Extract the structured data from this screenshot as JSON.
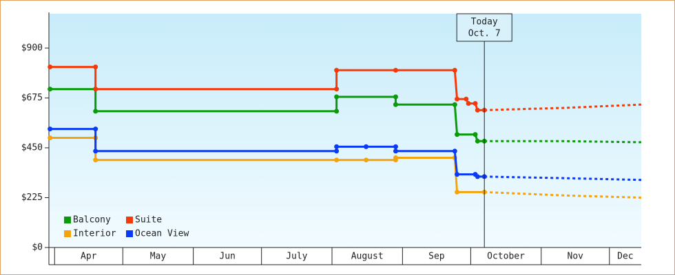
{
  "chart_data": {
    "type": "line",
    "xlim": [
      88.5,
      349
    ],
    "xticks": [
      {
        "value": 91,
        "label": "Apr"
      },
      {
        "value": 121,
        "label": "May"
      },
      {
        "value": 152,
        "label": "Jun"
      },
      {
        "value": 182,
        "label": "July"
      },
      {
        "value": 213,
        "label": "August"
      },
      {
        "value": 244,
        "label": "Sep"
      },
      {
        "value": 274,
        "label": "October"
      },
      {
        "value": 305,
        "label": "Nov"
      },
      {
        "value": 335,
        "label": "Dec"
      }
    ],
    "ylim": [
      0,
      1055
    ],
    "yticks": [
      {
        "value": 0,
        "label": "$0"
      },
      {
        "value": 225,
        "label": "$225"
      },
      {
        "value": 450,
        "label": "$450"
      },
      {
        "value": 675,
        "label": "$675"
      },
      {
        "value": 900,
        "label": "$900"
      }
    ],
    "today": {
      "x": 280,
      "label_top": "Today",
      "label_bottom": "Oct. 7"
    },
    "series": [
      {
        "name": "Balcony",
        "color": "#0a9a0a",
        "x": [
          89,
          109,
          109,
          215,
          215,
          241,
          241,
          267,
          268,
          276,
          277,
          280
        ],
        "values": [
          715,
          715,
          615,
          615,
          680,
          680,
          645,
          645,
          510,
          510,
          480,
          480
        ],
        "forecast_x": [
          280,
          315,
          349
        ],
        "forecast_values": [
          480,
          480,
          475
        ]
      },
      {
        "name": "Suite",
        "color": "#f53a0a",
        "x": [
          89,
          109,
          109,
          215,
          215,
          241,
          267,
          268,
          272,
          273,
          276,
          277,
          280
        ],
        "values": [
          815,
          815,
          715,
          715,
          800,
          800,
          800,
          670,
          670,
          650,
          650,
          620,
          620
        ],
        "forecast_x": [
          280,
          315,
          349
        ],
        "forecast_values": [
          620,
          630,
          645
        ]
      },
      {
        "name": "Interior",
        "color": "#f5a30a",
        "x": [
          89,
          109,
          109,
          215,
          228,
          241,
          241,
          267,
          268,
          280
        ],
        "values": [
          495,
          495,
          395,
          395,
          395,
          395,
          405,
          405,
          250,
          250
        ],
        "forecast_x": [
          280,
          315,
          349
        ],
        "forecast_values": [
          250,
          235,
          225
        ]
      },
      {
        "name": "Ocean View",
        "color": "#0a3af5",
        "x": [
          89,
          109,
          109,
          215,
          215,
          228,
          241,
          241,
          267,
          268,
          276,
          277,
          280
        ],
        "values": [
          535,
          535,
          435,
          435,
          455,
          455,
          455,
          435,
          435,
          330,
          330,
          320,
          320
        ],
        "forecast_x": [
          280,
          315,
          349
        ],
        "forecast_values": [
          320,
          313,
          305
        ]
      }
    ]
  }
}
